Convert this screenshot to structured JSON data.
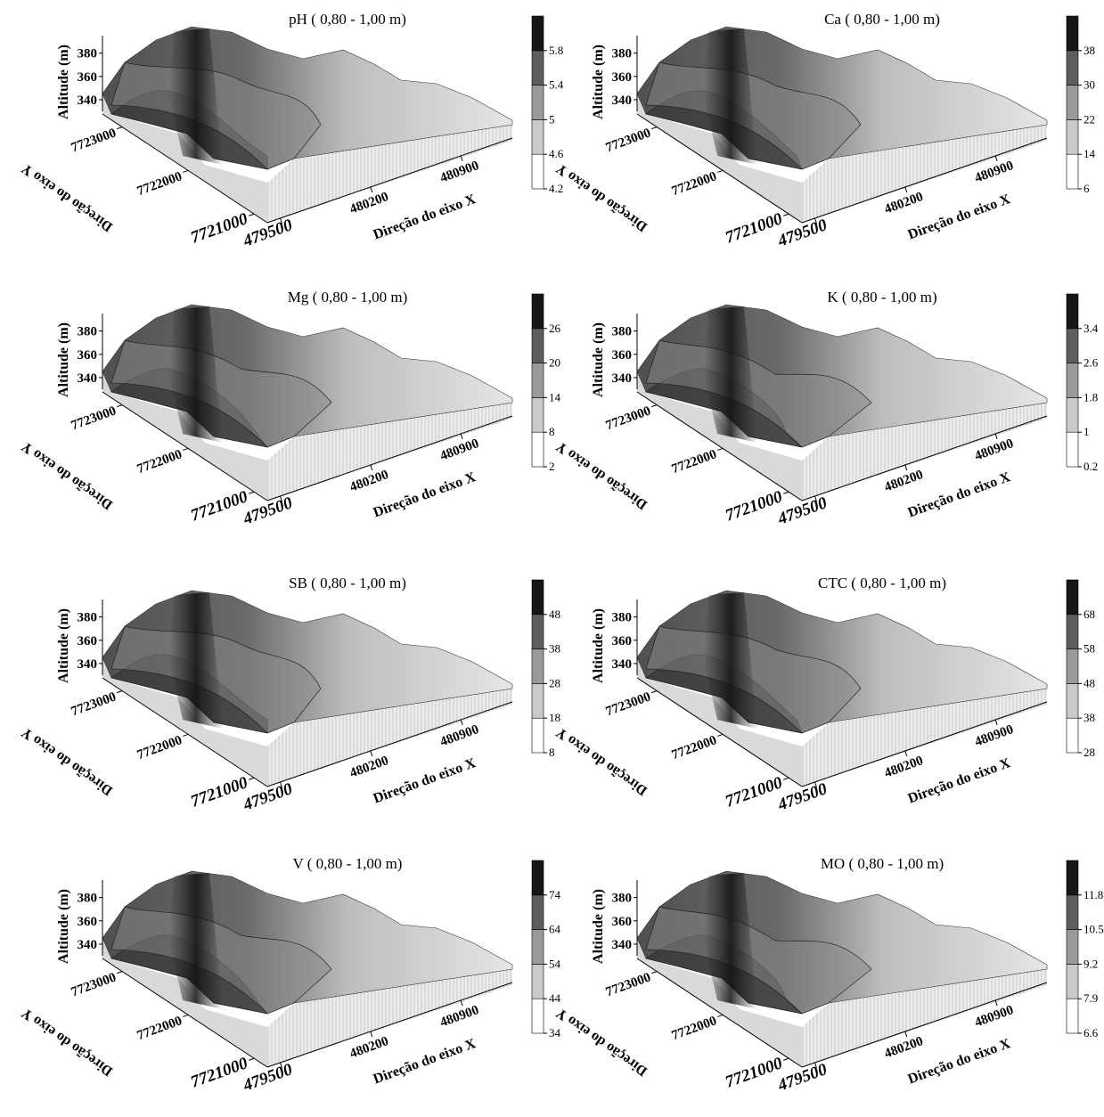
{
  "chart_data": [
    {
      "type": "surface3d",
      "title": "pH ( 0,80 - 1,00 m)",
      "zlabel": "Altitude (m)",
      "ylabel": "Direção do eixo Y",
      "xlabel": "Direção do eixo X",
      "xlim": [
        479400,
        481300
      ],
      "xticks": [
        479500,
        480200,
        480900
      ],
      "ylim": [
        7723300,
        7720800
      ],
      "yticks": [
        7723000,
        7722000,
        7721000
      ],
      "zlim": [
        330,
        395
      ],
      "zticks": [
        340,
        360,
        380
      ],
      "clim": [
        4.2,
        6.2
      ],
      "cticks": [
        4.2,
        4.6,
        5,
        5.4,
        5.8
      ],
      "colors": [
        "#ffffff",
        "#cacaca",
        "#9a9a9a",
        "#5e5e5e",
        "#161616"
      ]
    },
    {
      "type": "surface3d",
      "title": "Ca ( 0,80 - 1,00 m)",
      "zlabel": "Altitude (m)",
      "ylabel": "Direção do eixo Y",
      "xlabel": "Direção do eixo X",
      "xlim": [
        479400,
        481300
      ],
      "xticks": [
        479500,
        480200,
        480900
      ],
      "ylim": [
        7723300,
        7720800
      ],
      "yticks": [
        7723000,
        7722000,
        7721000
      ],
      "zlim": [
        330,
        395
      ],
      "zticks": [
        340,
        360,
        380
      ],
      "clim": [
        6,
        46
      ],
      "cticks": [
        6,
        14,
        22,
        30,
        38
      ],
      "colors": [
        "#ffffff",
        "#cacaca",
        "#9a9a9a",
        "#5e5e5e",
        "#161616"
      ]
    },
    {
      "type": "surface3d",
      "title": "Mg ( 0,80 - 1,00 m)",
      "zlabel": "Altitude (m)",
      "ylabel": "Direção do eixo Y",
      "xlabel": "Direção do eixo X",
      "xlim": [
        479400,
        481300
      ],
      "xticks": [
        479500,
        480200,
        480900
      ],
      "ylim": [
        7723300,
        7720800
      ],
      "yticks": [
        7723000,
        7722000,
        7721000
      ],
      "zlim": [
        330,
        395
      ],
      "zticks": [
        340,
        360,
        380
      ],
      "clim": [
        2,
        32
      ],
      "cticks": [
        2,
        8,
        14,
        20,
        26
      ],
      "colors": [
        "#ffffff",
        "#cacaca",
        "#9a9a9a",
        "#5e5e5e",
        "#161616"
      ]
    },
    {
      "type": "surface3d",
      "title": "K ( 0,80 - 1,00 m)",
      "zlabel": "Altitude (m)",
      "ylabel": "Direção do eixo Y",
      "xlabel": "Direção do eixo X",
      "xlim": [
        479400,
        481300
      ],
      "xticks": [
        479500,
        480200,
        480900
      ],
      "ylim": [
        7723300,
        7720800
      ],
      "yticks": [
        7723000,
        7722000,
        7721000
      ],
      "zlim": [
        330,
        395
      ],
      "zticks": [
        340,
        360,
        380
      ],
      "clim": [
        0.2,
        4.2
      ],
      "cticks": [
        0.2,
        1,
        1.8,
        2.6,
        3.4
      ],
      "colors": [
        "#ffffff",
        "#cacaca",
        "#9a9a9a",
        "#5e5e5e",
        "#161616"
      ]
    },
    {
      "type": "surface3d",
      "title": "SB ( 0,80 - 1,00 m)",
      "zlabel": "Altitude (m)",
      "ylabel": "Direção do eixo Y",
      "xlabel": "Direção do eixo X",
      "xlim": [
        479400,
        481300
      ],
      "xticks": [
        479500,
        480200,
        480900
      ],
      "ylim": [
        7723300,
        7720800
      ],
      "yticks": [
        7723000,
        7722000,
        7721000
      ],
      "zlim": [
        330,
        395
      ],
      "zticks": [
        340,
        360,
        380
      ],
      "clim": [
        8,
        58
      ],
      "cticks": [
        8,
        18,
        28,
        38,
        48
      ],
      "colors": [
        "#ffffff",
        "#cacaca",
        "#9a9a9a",
        "#5e5e5e",
        "#161616"
      ]
    },
    {
      "type": "surface3d",
      "title": "CTC ( 0,80 - 1,00 m)",
      "zlabel": "Altitude (m)",
      "ylabel": "Direção do eixo Y",
      "xlabel": "Direção do eixo X",
      "xlim": [
        479400,
        481300
      ],
      "xticks": [
        479500,
        480200,
        480900
      ],
      "ylim": [
        7723300,
        7720800
      ],
      "yticks": [
        7723000,
        7722000,
        7721000
      ],
      "zlim": [
        330,
        395
      ],
      "zticks": [
        340,
        360,
        380
      ],
      "clim": [
        28,
        78
      ],
      "cticks": [
        28,
        38,
        48,
        58,
        68
      ],
      "colors": [
        "#ffffff",
        "#cacaca",
        "#9a9a9a",
        "#5e5e5e",
        "#161616"
      ]
    },
    {
      "type": "surface3d",
      "title": "V ( 0,80 - 1,00 m)",
      "zlabel": "Altitude (m)",
      "ylabel": "Direção do eixo Y",
      "xlabel": "Direção do eixo X",
      "xlim": [
        479400,
        481300
      ],
      "xticks": [
        479500,
        480200,
        480900
      ],
      "ylim": [
        7723300,
        7720800
      ],
      "yticks": [
        7723000,
        7722000,
        7721000
      ],
      "zlim": [
        330,
        395
      ],
      "zticks": [
        340,
        360,
        380
      ],
      "clim": [
        34,
        84
      ],
      "cticks": [
        34,
        44,
        54,
        64,
        74
      ],
      "colors": [
        "#ffffff",
        "#cacaca",
        "#9a9a9a",
        "#5e5e5e",
        "#161616"
      ]
    },
    {
      "type": "surface3d",
      "title": "MO ( 0,80 - 1,00 m)",
      "zlabel": "Altitude (m)",
      "ylabel": "Direção do eixo Y",
      "xlabel": "Direção do eixo X",
      "xlim": [
        479400,
        481300
      ],
      "xticks": [
        479500,
        480200,
        480900
      ],
      "ylim": [
        7723300,
        7720800
      ],
      "yticks": [
        7723000,
        7722000,
        7721000
      ],
      "zlim": [
        330,
        395
      ],
      "zticks": [
        340,
        360,
        380
      ],
      "clim": [
        6.6,
        13.1
      ],
      "cticks": [
        6.6,
        7.9,
        9.2,
        10.5,
        11.8
      ],
      "colors": [
        "#ffffff",
        "#cacaca",
        "#9a9a9a",
        "#5e5e5e",
        "#161616"
      ]
    }
  ]
}
